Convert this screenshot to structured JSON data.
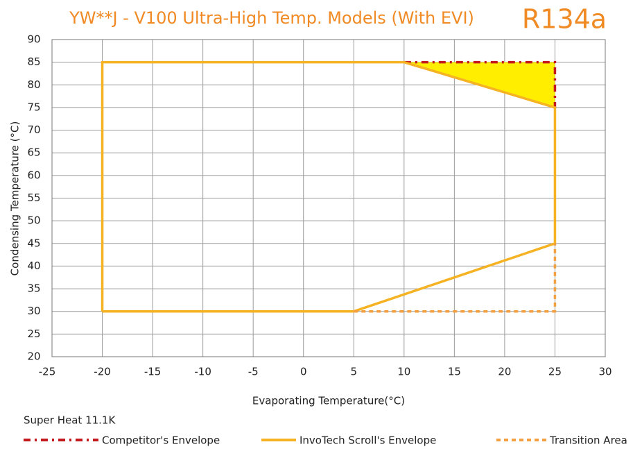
{
  "chart_data": {
    "type": "line",
    "title": "YW**J - V100 Ultra-High Temp. Models (With EVI)",
    "subtitle": "R134a",
    "title_color": "#f08a24",
    "x_label": "Evaporating Temperature(°C)",
    "y_label": "Condensing Temperature (°C)",
    "annotation": "Super Heat 11.1K",
    "xlim": [
      -25,
      30
    ],
    "xticks": [
      -25,
      -20,
      -15,
      -10,
      -5,
      0,
      5,
      10,
      15,
      20,
      25,
      30
    ],
    "ylim": [
      20,
      90
    ],
    "yticks": [
      20,
      25,
      30,
      35,
      40,
      45,
      50,
      55,
      60,
      65,
      70,
      75,
      80,
      85,
      90
    ],
    "grid": true,
    "legend": "bottom",
    "series": [
      {
        "name": "Competitor's Envelope",
        "color": "#c41a1f",
        "style": "dashdot",
        "fill": "#ffee00",
        "x": [
          10,
          25,
          25
        ],
        "values": [
          85,
          85,
          75
        ]
      },
      {
        "name": "InvoTech Scroll's Envelope",
        "color": "#f5b324",
        "style": "solid",
        "x": [
          -20,
          -20,
          10,
          25,
          25,
          5,
          -20
        ],
        "values": [
          30,
          85,
          85,
          75,
          45,
          30,
          30
        ]
      },
      {
        "name": "Transition Area",
        "color": "#f5a040",
        "style": "dashed",
        "x": [
          5,
          25,
          25
        ],
        "values": [
          30,
          30,
          45
        ]
      }
    ]
  }
}
